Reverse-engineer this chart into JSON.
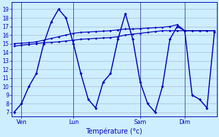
{
  "background_color": "#cceeff",
  "line_color": "#0000bb",
  "grid_color": "#aabbcc",
  "xlabel": "Température (°c)",
  "ylim": [
    6.5,
    19.8
  ],
  "xlim": [
    -0.3,
    27.3
  ],
  "ylabel_ticks": [
    7,
    8,
    9,
    10,
    11,
    12,
    13,
    14,
    15,
    16,
    17,
    18,
    19
  ],
  "x_tick_labels": [
    "Ven",
    "Lun",
    "Sam",
    "Dim"
  ],
  "x_tick_positions": [
    1,
    8,
    17,
    23
  ],
  "vline_positions": [
    1,
    8,
    17,
    23
  ],
  "main_y": [
    7,
    8,
    10,
    11.5,
    15,
    17.5,
    19,
    18,
    15,
    11.5,
    8.5,
    7.5,
    10.5,
    11.5,
    15.5,
    18.5,
    15.5,
    10.5,
    8,
    7,
    10,
    15.5,
    17,
    16.5,
    9,
    8.5,
    7.5,
    16.3
  ],
  "flat1_y": [
    14.7,
    14.8,
    14.9,
    15.0,
    15.1,
    15.15,
    15.2,
    15.3,
    15.4,
    15.5,
    15.55,
    15.6,
    15.65,
    15.7,
    15.8,
    16.0,
    16.1,
    16.2,
    16.3,
    16.4,
    16.5,
    16.5,
    16.5,
    16.5,
    16.5,
    16.5,
    16.5,
    16.5
  ],
  "flat2_y": [
    15.0,
    15.05,
    15.1,
    15.2,
    15.4,
    15.6,
    15.8,
    16.0,
    16.2,
    16.3,
    16.35,
    16.4,
    16.45,
    16.5,
    16.6,
    16.7,
    16.7,
    16.75,
    16.8,
    16.85,
    16.9,
    17.0,
    17.2,
    16.5,
    16.5,
    16.5,
    16.5,
    16.5
  ]
}
